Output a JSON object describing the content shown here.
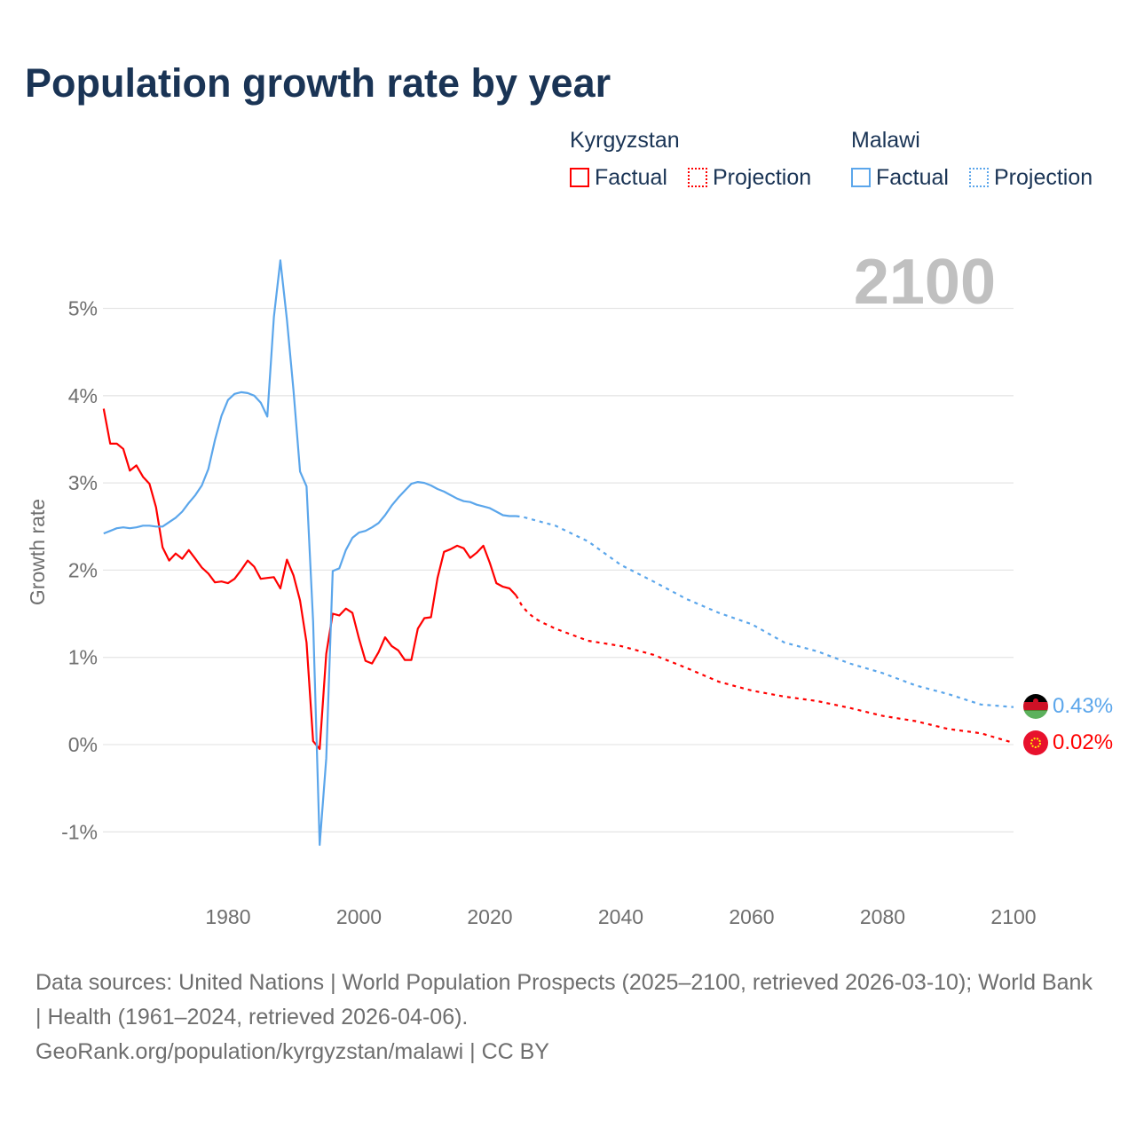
{
  "title": "Population growth rate by year",
  "legend": {
    "kyrgyzstan": {
      "name": "Kyrgyzstan",
      "factual": "Factual",
      "projection": "Projection",
      "color": "#ff0000"
    },
    "malawi": {
      "name": "Malawi",
      "factual": "Factual",
      "projection": "Projection",
      "color": "#5ba6eb"
    }
  },
  "year_label": "2100",
  "end_labels": {
    "malawi": "0.43%",
    "kyrgyzstan": "0.02%"
  },
  "source": {
    "line1": "Data sources: United Nations | World Population Prospects (2025–2100, retrieved 2026-03-10); World Bank | Health (1961–2024, retrieved 2026-04-06).",
    "line2": "GeoRank.org/population/kyrgyzstan/malawi | CC BY"
  },
  "chart_data": {
    "type": "line",
    "title": "Population growth rate by year",
    "xlabel": "",
    "ylabel": "Growth rate",
    "xlim": [
      1961,
      2100
    ],
    "ylim": [
      -1.5,
      5.7
    ],
    "xticks": [
      "1980",
      "2000",
      "2020",
      "2040",
      "2060",
      "2080",
      "2100"
    ],
    "yticks": [
      "-1%",
      "0%",
      "1%",
      "2%",
      "3%",
      "4%",
      "5%"
    ],
    "ytick_values": [
      -1,
      0,
      1,
      2,
      3,
      4,
      5
    ],
    "xtick_values": [
      1980,
      2000,
      2020,
      2040,
      2060,
      2080,
      2100
    ],
    "grid": true,
    "series": [
      {
        "name": "Kyrgyzstan Factual",
        "style": "solid",
        "color": "#ff0000",
        "start": 1961,
        "values": [
          3.85,
          3.45,
          3.45,
          3.39,
          3.14,
          3.2,
          3.07,
          2.99,
          2.72,
          2.26,
          2.11,
          2.19,
          2.13,
          2.23,
          2.13,
          2.03,
          1.96,
          1.86,
          1.87,
          1.85,
          1.9,
          2.0,
          2.11,
          2.04,
          1.9,
          1.91,
          1.92,
          1.79,
          2.12,
          1.94,
          1.65,
          1.17,
          0.04,
          -0.05,
          1.04,
          1.5,
          1.48,
          1.56,
          1.51,
          1.22,
          0.96,
          0.93,
          1.06,
          1.23,
          1.13,
          1.08,
          0.97,
          0.97,
          1.33,
          1.45,
          1.46,
          1.91,
          2.21,
          2.24,
          2.28,
          2.25,
          2.14,
          2.2,
          2.28,
          2.08,
          1.85,
          1.81,
          1.79,
          1.71
        ]
      },
      {
        "name": "Kyrgyzstan Projection",
        "style": "dotted",
        "color": "#ff0000",
        "x": [
          2024,
          2025,
          2026,
          2027,
          2028,
          2030,
          2035,
          2040,
          2045,
          2050,
          2055,
          2060,
          2065,
          2070,
          2075,
          2080,
          2085,
          2090,
          2095,
          2100
        ],
        "values": [
          1.71,
          1.58,
          1.5,
          1.44,
          1.4,
          1.33,
          1.19,
          1.13,
          1.03,
          0.88,
          0.72,
          0.62,
          0.55,
          0.5,
          0.42,
          0.33,
          0.27,
          0.18,
          0.13,
          0.02
        ]
      },
      {
        "name": "Malawi Factual",
        "style": "solid",
        "color": "#5ba6eb",
        "start": 1961,
        "values": [
          2.42,
          2.45,
          2.48,
          2.49,
          2.48,
          2.49,
          2.51,
          2.51,
          2.5,
          2.5,
          2.55,
          2.6,
          2.67,
          2.77,
          2.86,
          2.97,
          3.16,
          3.49,
          3.77,
          3.95,
          4.02,
          4.04,
          4.03,
          4.0,
          3.92,
          3.76,
          4.9,
          5.55,
          4.87,
          4.06,
          3.13,
          2.96,
          1.41,
          -1.15,
          -0.16,
          1.99,
          2.02,
          2.23,
          2.37,
          2.43,
          2.45,
          2.49,
          2.54,
          2.63,
          2.74,
          2.83,
          2.91,
          2.99,
          3.01,
          3.0,
          2.97,
          2.93,
          2.9,
          2.86,
          2.82,
          2.79,
          2.78,
          2.75,
          2.73,
          2.71,
          2.67,
          2.63,
          2.62,
          2.62
        ]
      },
      {
        "name": "Malawi Projection",
        "style": "dotted",
        "color": "#5ba6eb",
        "x": [
          2024,
          2025,
          2030,
          2035,
          2040,
          2045,
          2050,
          2055,
          2060,
          2065,
          2070,
          2075,
          2080,
          2085,
          2090,
          2095,
          2100
        ],
        "values": [
          2.62,
          2.61,
          2.51,
          2.33,
          2.06,
          1.87,
          1.67,
          1.51,
          1.38,
          1.17,
          1.07,
          0.93,
          0.82,
          0.68,
          0.58,
          0.46,
          0.43
        ]
      }
    ]
  }
}
